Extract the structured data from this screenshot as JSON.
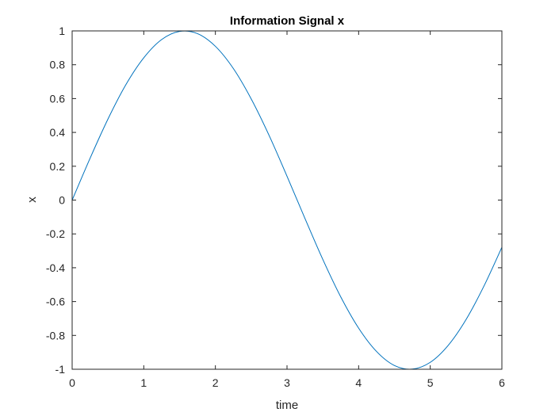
{
  "chart_data": {
    "type": "line",
    "title": "Information Signal x",
    "xlabel": "time",
    "ylabel": "x",
    "xlim": [
      0,
      6
    ],
    "ylim": [
      -1,
      1
    ],
    "x_ticks": [
      "0",
      "1",
      "2",
      "3",
      "4",
      "5",
      "6"
    ],
    "y_ticks": [
      "-1",
      "-0.8",
      "-0.6",
      "-0.4",
      "-0.2",
      "0",
      "0.2",
      "0.4",
      "0.6",
      "0.8",
      "1"
    ],
    "grid": false,
    "legend": "none",
    "series": [
      {
        "color": "#0072BD",
        "x": [
          0,
          0.25,
          0.5,
          0.75,
          1,
          1.25,
          1.5,
          1.75,
          2,
          2.25,
          2.5,
          2.75,
          3,
          3.25,
          3.5,
          3.75,
          4,
          4.25,
          4.5,
          4.75,
          5,
          5.25,
          5.5,
          5.75,
          6
        ],
        "y": [
          0,
          0.247,
          0.479,
          0.682,
          0.841,
          0.949,
          0.997,
          0.984,
          0.909,
          0.778,
          0.598,
          0.382,
          0.141,
          -0.108,
          -0.351,
          -0.572,
          -0.757,
          -0.895,
          -0.978,
          -0.999,
          -0.959,
          -0.859,
          -0.706,
          -0.508,
          -0.279
        ]
      }
    ]
  }
}
